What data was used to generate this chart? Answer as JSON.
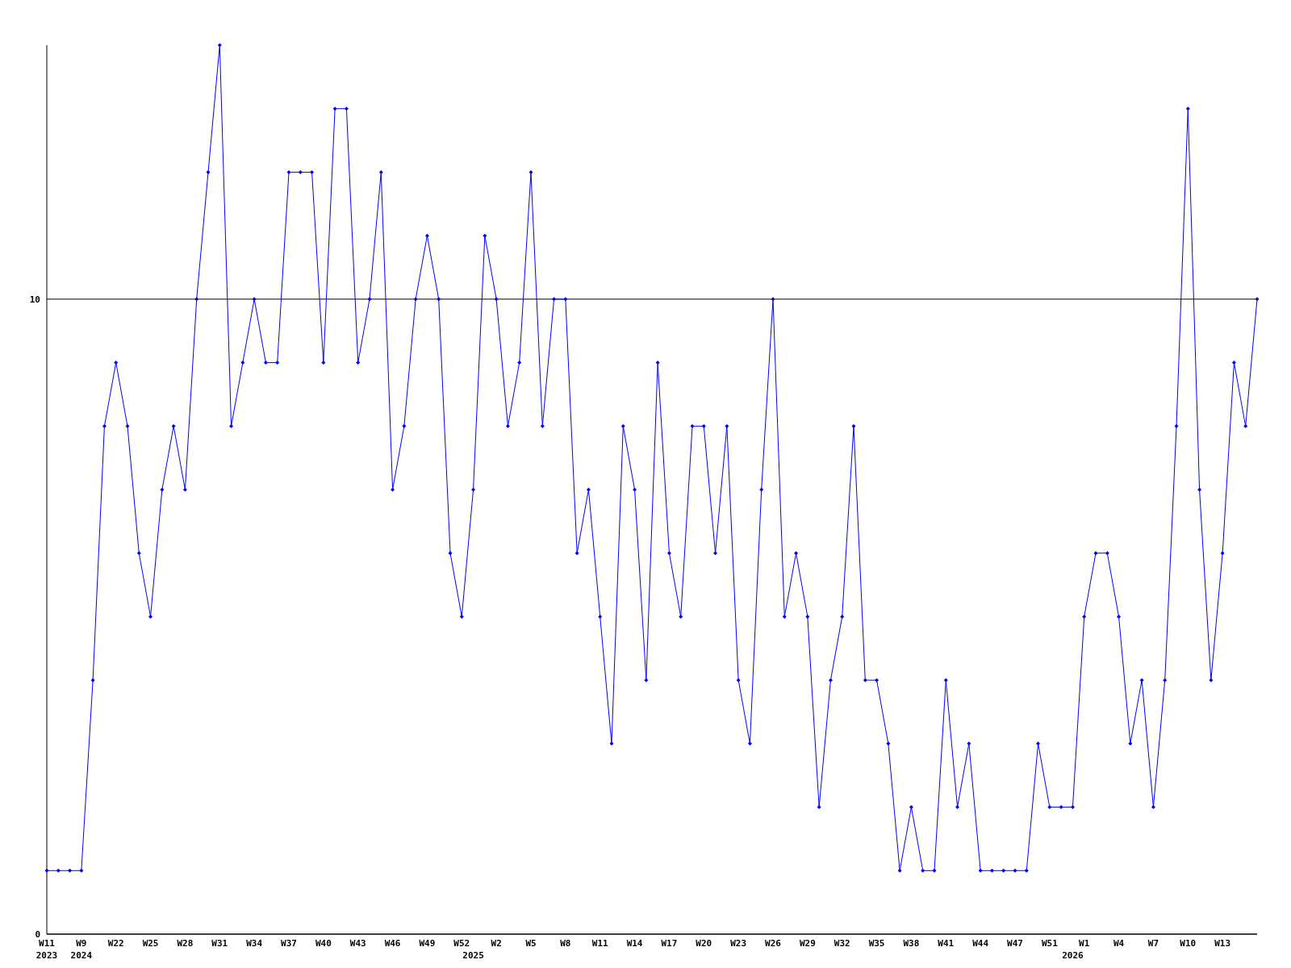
{
  "chart_data": {
    "type": "line",
    "categories": [
      "W11\n2023",
      null,
      null,
      "W9\n2024",
      null,
      null,
      "W22",
      null,
      null,
      "W25",
      null,
      null,
      "W28",
      null,
      null,
      "W31",
      null,
      null,
      "W34",
      null,
      null,
      "W37",
      null,
      null,
      "W40",
      null,
      null,
      "W43",
      null,
      null,
      "W46",
      null,
      null,
      "W49",
      null,
      null,
      "W52",
      "\n2025",
      null,
      "W2",
      null,
      null,
      "W5",
      null,
      null,
      "W8",
      null,
      null,
      "W11",
      null,
      null,
      "W14",
      null,
      null,
      "W17",
      null,
      null,
      "W20",
      null,
      null,
      "W23",
      null,
      null,
      "W26",
      null,
      null,
      "W29",
      null,
      null,
      "W32",
      null,
      null,
      "W35",
      null,
      null,
      "W38",
      null,
      null,
      "W41",
      null,
      null,
      "W44",
      null,
      null,
      "W47",
      null,
      null,
      "W51",
      null,
      "\n2026",
      "W1",
      null,
      null,
      "W4",
      null,
      null,
      "W7",
      null,
      null,
      "W10",
      null,
      null,
      "W13",
      null,
      null,
      null
    ],
    "series": [
      {
        "color": "#0000ff",
        "values": [
          1,
          1,
          1,
          1,
          4,
          8,
          9,
          8,
          6,
          5,
          7,
          8,
          7,
          10,
          12,
          14,
          8,
          9,
          10,
          9,
          9,
          12,
          12,
          12,
          9,
          13,
          13,
          9,
          10,
          12,
          7,
          8,
          10,
          11,
          10,
          6,
          5,
          7,
          11,
          10,
          8,
          9,
          12,
          8,
          10,
          10,
          6,
          7,
          5,
          3,
          8,
          7,
          4,
          9,
          6,
          5,
          8,
          8,
          6,
          8,
          4,
          3,
          7,
          10,
          5,
          6,
          5,
          2,
          4,
          5,
          8,
          4,
          4,
          3,
          1,
          2,
          1,
          1,
          4,
          2,
          3,
          1,
          1,
          1,
          1,
          1,
          3,
          2,
          2,
          2,
          5,
          6,
          6,
          5,
          3,
          4,
          2,
          4,
          8,
          13,
          7,
          4,
          6,
          9,
          8,
          10
        ]
      }
    ],
    "ylim": [
      0,
      14
    ],
    "yticks": [
      0,
      10
    ],
    "grid": "y",
    "marker": "diamond",
    "line_style": "solid"
  }
}
